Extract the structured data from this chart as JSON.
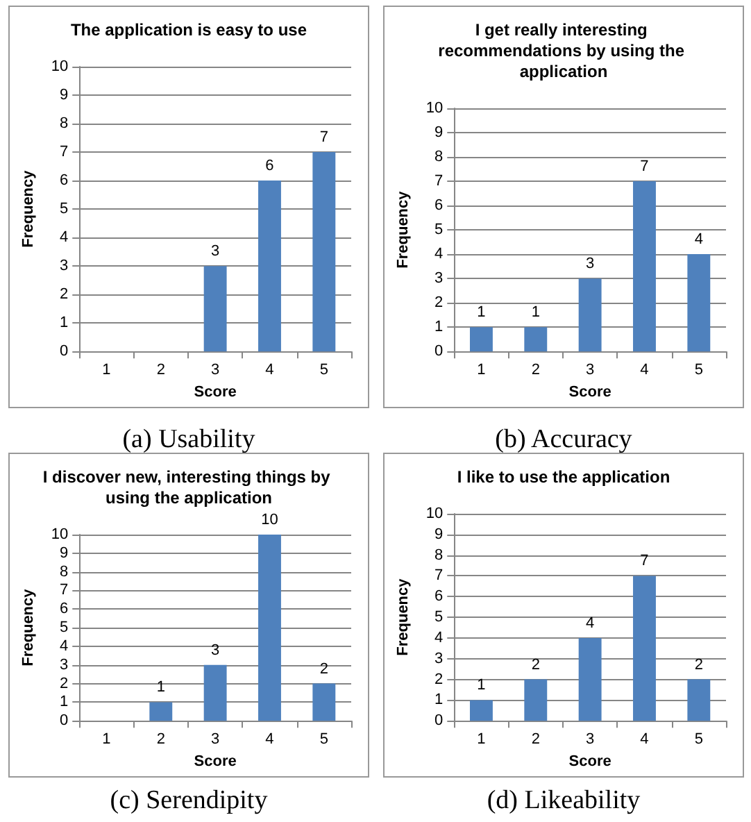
{
  "chart_data": [
    {
      "type": "bar",
      "title": "The application is easy to use",
      "xlabel": "Score",
      "ylabel": "Frequency",
      "categories": [
        "1",
        "2",
        "3",
        "4",
        "5"
      ],
      "values": [
        0,
        0,
        3,
        6,
        7
      ],
      "value_labels": [
        null,
        null,
        "3",
        "6",
        "7"
      ],
      "color": "#4f81bd",
      "ylim": [
        0,
        10
      ],
      "yticks": [
        0,
        1,
        2,
        3,
        4,
        5,
        6,
        7,
        8,
        9,
        10
      ],
      "grid": "y",
      "annotations": [
        "(a)  Usability"
      ]
    },
    {
      "type": "bar",
      "title": "I get really interesting recommendations by using the application",
      "xlabel": "Score",
      "ylabel": "Frequency",
      "categories": [
        "1",
        "2",
        "3",
        "4",
        "5"
      ],
      "values": [
        1,
        1,
        3,
        7,
        4
      ],
      "value_labels": [
        "1",
        "1",
        "3",
        "7",
        "4"
      ],
      "color": "#4f81bd",
      "ylim": [
        0,
        10
      ],
      "yticks": [
        0,
        1,
        2,
        3,
        4,
        5,
        6,
        7,
        8,
        9,
        10
      ],
      "grid": "y",
      "annotations": [
        "(b)  Accuracy"
      ]
    },
    {
      "type": "bar",
      "title": "I discover new, interesting things by using the application",
      "xlabel": "Score",
      "ylabel": "Frequency",
      "categories": [
        "1",
        "2",
        "3",
        "4",
        "5"
      ],
      "values": [
        0,
        1,
        3,
        10,
        2
      ],
      "value_labels": [
        null,
        "1",
        "3",
        "10",
        "2"
      ],
      "color": "#4f81bd",
      "ylim": [
        0,
        10
      ],
      "yticks": [
        0,
        1,
        2,
        3,
        4,
        5,
        6,
        7,
        8,
        9,
        10
      ],
      "grid": "y",
      "annotations": [
        "(c)  Serendipity"
      ]
    },
    {
      "type": "bar",
      "title": "I like to use the application",
      "xlabel": "Score",
      "ylabel": "Frequency",
      "categories": [
        "1",
        "2",
        "3",
        "4",
        "5"
      ],
      "values": [
        1,
        2,
        4,
        7,
        2
      ],
      "value_labels": [
        "1",
        "2",
        "4",
        "7",
        "2"
      ],
      "color": "#4f81bd",
      "ylim": [
        0,
        10
      ],
      "yticks": [
        0,
        1,
        2,
        3,
        4,
        5,
        6,
        7,
        8,
        9,
        10
      ],
      "grid": "y",
      "annotations": [
        "(d)  Likeability"
      ]
    }
  ]
}
